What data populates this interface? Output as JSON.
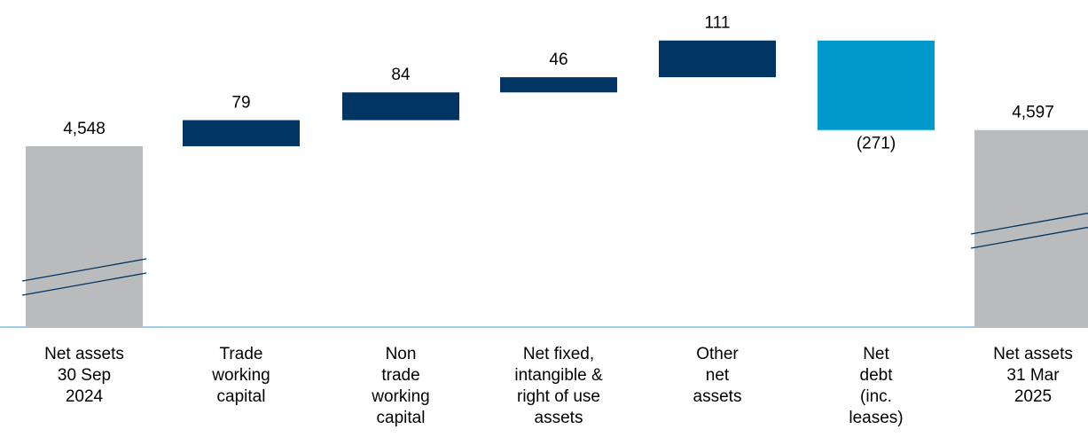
{
  "chart_data": {
    "type": "waterfall",
    "unit": "",
    "categories": [
      [
        "Net assets",
        "30 Sep",
        "2024"
      ],
      [
        "Trade",
        "working",
        "capital"
      ],
      [
        "Non",
        "trade",
        "working",
        "capital"
      ],
      [
        "Net fixed,",
        "intangible &",
        "right of use",
        "assets"
      ],
      [
        "Other",
        "net",
        "assets"
      ],
      [
        "Net",
        "debt",
        "(inc.",
        "leases)"
      ],
      [
        "Net assets",
        "31  Mar",
        "2025"
      ]
    ],
    "steps": [
      {
        "kind": "total",
        "value": 4548,
        "label": "4,548"
      },
      {
        "kind": "delta",
        "value": 79,
        "label": "79"
      },
      {
        "kind": "delta",
        "value": 84,
        "label": "84"
      },
      {
        "kind": "delta",
        "value": 46,
        "label": "46"
      },
      {
        "kind": "delta",
        "value": 111,
        "label": "111"
      },
      {
        "kind": "delta",
        "value": -271,
        "label": "(271)"
      },
      {
        "kind": "total",
        "value": 4597,
        "label": "4,597"
      }
    ],
    "axis_break": true,
    "colors": {
      "total": "#BABBBD",
      "increase": "#003462",
      "decrease": "#0099CC",
      "break_line": "#003462",
      "baseline": "#3A9BD0"
    }
  }
}
